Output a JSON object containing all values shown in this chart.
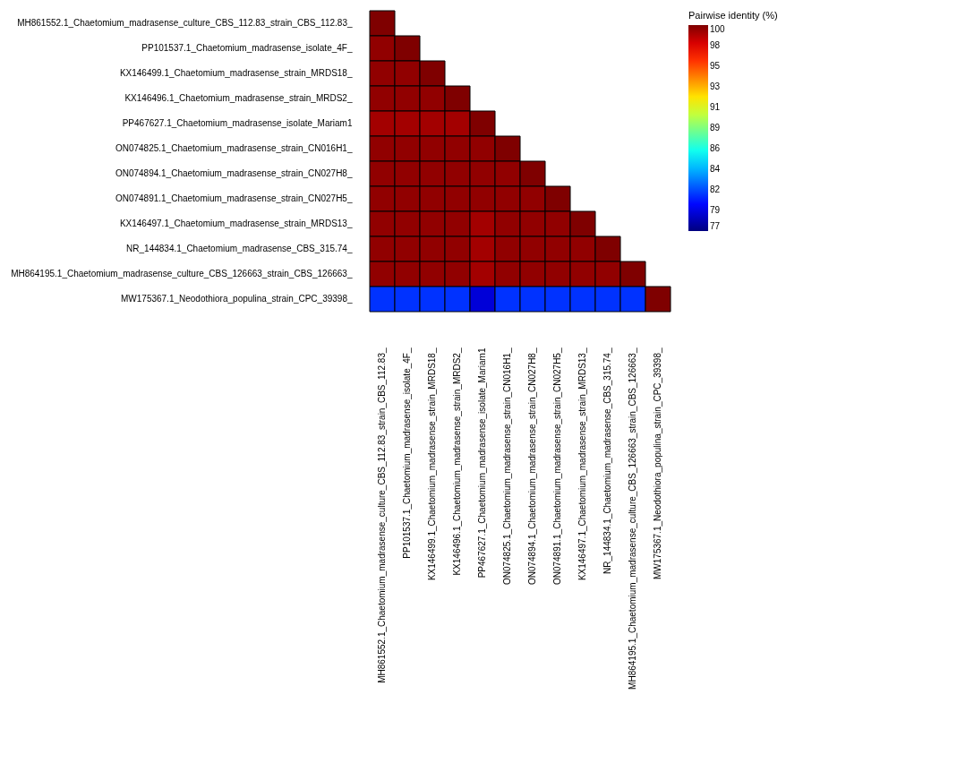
{
  "chart_data": {
    "type": "heatmap",
    "clabel": "Pairwise identity (%)",
    "categories": [
      "MH861552.1_Chaetomium_madrasense_culture_CBS_112.83_strain_CBS_112.83_",
      "PP101537.1_Chaetomium_madrasense_isolate_4F_",
      "KX146499.1_Chaetomium_madrasense_strain_MRDS18_",
      "KX146496.1_Chaetomium_madrasense_strain_MRDS2_",
      "PP467627.1_Chaetomium_madrasense_isolate_Mariam1",
      "ON074825.1_Chaetomium_madrasense_strain_CN016H1_",
      "ON074894.1_Chaetomium_madrasense_strain_CN027H8_",
      "ON074891.1_Chaetomium_madrasense_strain_CN027H5_",
      "KX146497.1_Chaetomium_madrasense_strain_MRDS13_",
      "NR_144834.1_Chaetomium_madrasense_CBS_315.74_",
      "MH864195.1_Chaetomium_madrasense_culture_CBS_126663_strain_CBS_126663_",
      "MW175367.1_Neodothiora_populina_strain_CPC_39398_"
    ],
    "y_categories": [
      "MH861552.1_Chaetomium_madrasense_culture_CBS_112.83_strain_CBS_112.83_",
      "PP101537.1_Chaetomium_madrasense_isolate_4F_",
      "KX146499.1_Chaetomium_madrasense_strain_MRDS18_",
      "KX146496.1_Chaetomium_madrasense_strain_MRDS2_",
      "PP467627.1_Chaetomium_madrasense_isolate_Mariam1",
      "ON074825.1_Chaetomium_madrasense_strain_CN016H1_",
      "ON074894.1_Chaetomium_madrasense_strain_CN027H8_",
      "ON074891.1_Chaetomium_madrasense_strain_CN027H5_",
      "KX146497.1_Chaetomium_madrasense_strain_MRDS13_",
      "NR_144834.1_Chaetomium_madrasense_CBS_315.74_",
      "MH864195.1_Chaetomium_madrasense_culture_CBS_126663_strain_CBS_126663_",
      "MW175367.1_Neodothiora_populina_strain_CPC_39398_"
    ],
    "cells": [
      [
        100,
        null,
        null,
        null,
        null,
        null,
        null,
        null,
        null,
        null,
        null,
        null
      ],
      [
        99.6,
        100,
        null,
        null,
        null,
        null,
        null,
        null,
        null,
        null,
        null,
        null
      ],
      [
        99.6,
        99.6,
        100,
        null,
        null,
        null,
        null,
        null,
        null,
        null,
        null,
        null
      ],
      [
        99.6,
        99.6,
        99.6,
        100,
        null,
        null,
        null,
        null,
        null,
        null,
        null,
        null
      ],
      [
        99.2,
        99.2,
        99.2,
        99.2,
        100,
        null,
        null,
        null,
        null,
        null,
        null,
        null
      ],
      [
        99.6,
        99.6,
        99.6,
        99.6,
        99.6,
        100,
        null,
        null,
        null,
        null,
        null,
        null
      ],
      [
        99.6,
        99.6,
        99.6,
        99.6,
        99.6,
        99.6,
        100,
        null,
        null,
        null,
        null,
        null
      ],
      [
        99.6,
        99.6,
        99.6,
        99.6,
        99.6,
        99.6,
        99.6,
        100,
        null,
        null,
        null,
        null
      ],
      [
        99.6,
        99.6,
        99.6,
        99.6,
        99.2,
        99.6,
        99.6,
        99.6,
        100,
        null,
        null,
        null
      ],
      [
        99.6,
        99.6,
        99.6,
        99.6,
        99.2,
        99.6,
        99.6,
        99.6,
        99.6,
        100,
        null,
        null
      ],
      [
        99.6,
        99.6,
        99.6,
        99.6,
        99.2,
        99.6,
        99.6,
        99.6,
        99.6,
        99.6,
        100,
        null
      ],
      [
        81,
        81,
        81,
        81,
        79,
        81,
        81,
        81,
        81,
        81,
        81,
        100
      ]
    ],
    "clim": [
      77,
      100
    ],
    "cticks": [
      {
        "value": 77,
        "label": "77"
      },
      {
        "value": 79.3,
        "label": "79"
      },
      {
        "value": 81.6,
        "label": "82"
      },
      {
        "value": 83.9,
        "label": "84"
      },
      {
        "value": 86.2,
        "label": "86"
      },
      {
        "value": 88.5,
        "label": "89"
      },
      {
        "value": 90.8,
        "label": "91"
      },
      {
        "value": 93.1,
        "label": "93"
      },
      {
        "value": 95.4,
        "label": "95"
      },
      {
        "value": 97.7,
        "label": "98"
      },
      {
        "value": 100,
        "label": "100"
      }
    ]
  }
}
